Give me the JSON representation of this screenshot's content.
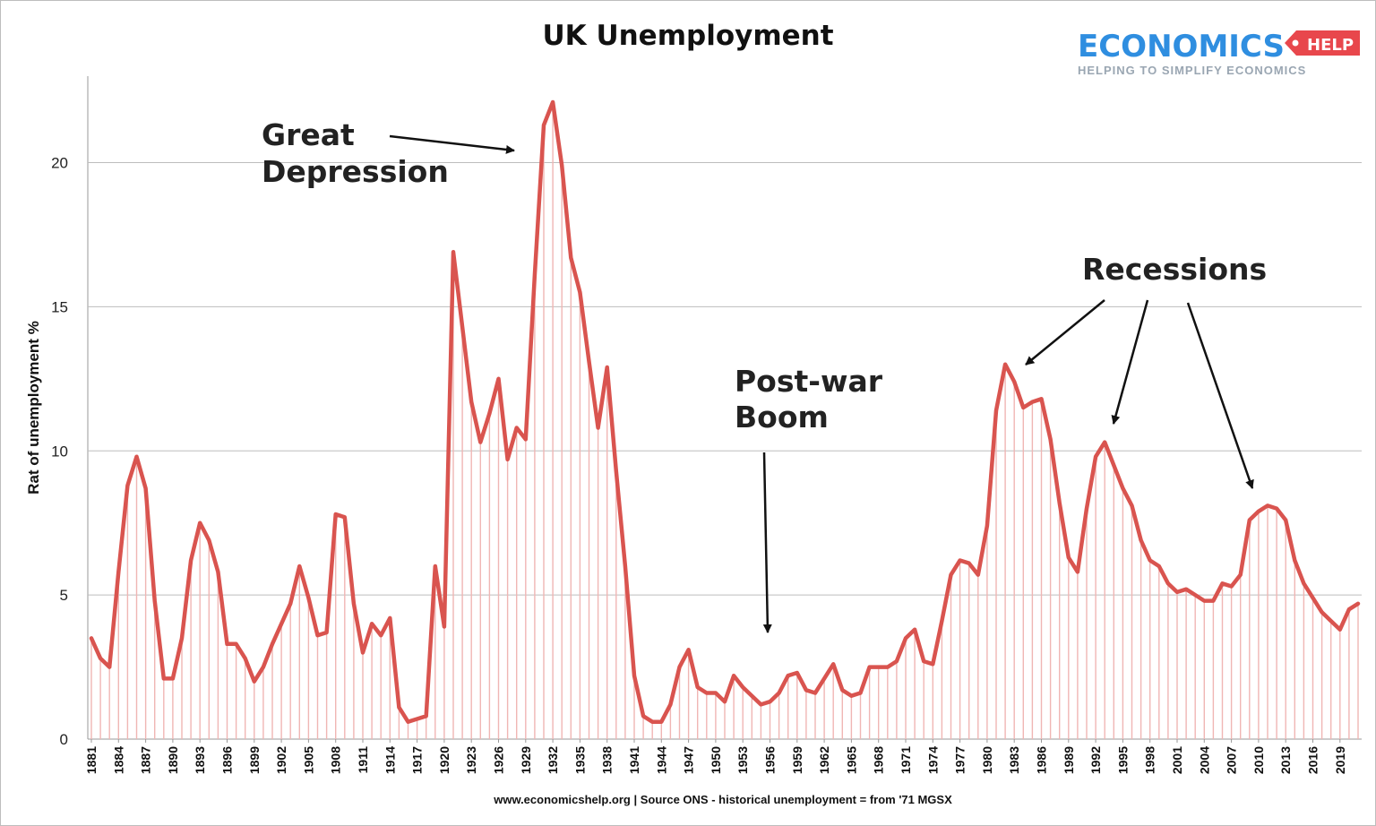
{
  "chart_data": {
    "type": "line",
    "title": "UK Unemployment",
    "ylabel": "Rat of unemployment %",
    "xlabel": "",
    "ylim": [
      0,
      23
    ],
    "yticks": [
      "0",
      "5",
      "10",
      "15",
      "20"
    ],
    "ytick_values": [
      0,
      5,
      10,
      15,
      20
    ],
    "grid": "horizontal",
    "line_color": "#d9544f",
    "drop_line_color": "#f0b6b4",
    "xtick_labels": [
      "1881",
      "1884",
      "1887",
      "1890",
      "1893",
      "1896",
      "1899",
      "1902",
      "1905",
      "1908",
      "1911",
      "1914",
      "1917",
      "1920",
      "1923",
      "1926",
      "1929",
      "1932",
      "1935",
      "1938",
      "1941",
      "1944",
      "1947",
      "1950",
      "1953",
      "1956",
      "1959",
      "1962",
      "1965",
      "1968",
      "1971",
      "1974",
      "1977",
      "1980",
      "1983",
      "1986",
      "1989",
      "1992",
      "1995",
      "1998",
      "2001",
      "2004",
      "2007",
      "2010",
      "2013",
      "2016",
      "2019"
    ],
    "x": [
      1881,
      1882,
      1883,
      1884,
      1885,
      1886,
      1887,
      1888,
      1889,
      1890,
      1891,
      1892,
      1893,
      1894,
      1895,
      1896,
      1897,
      1898,
      1899,
      1900,
      1901,
      1902,
      1903,
      1904,
      1905,
      1906,
      1907,
      1908,
      1909,
      1910,
      1911,
      1912,
      1913,
      1914,
      1915,
      1916,
      1917,
      1918,
      1919,
      1920,
      1921,
      1922,
      1923,
      1924,
      1925,
      1926,
      1927,
      1928,
      1929,
      1930,
      1931,
      1932,
      1933,
      1934,
      1935,
      1936,
      1937,
      1938,
      1939,
      1940,
      1941,
      1942,
      1943,
      1944,
      1945,
      1946,
      1947,
      1948,
      1949,
      1950,
      1951,
      1952,
      1953,
      1954,
      1955,
      1956,
      1957,
      1958,
      1959,
      1960,
      1961,
      1962,
      1963,
      1964,
      1965,
      1966,
      1967,
      1968,
      1969,
      1970,
      1971,
      1972,
      1973,
      1974,
      1975,
      1976,
      1977,
      1978,
      1979,
      1980,
      1981,
      1982,
      1983,
      1984,
      1985,
      1986,
      1987,
      1988,
      1989,
      1990,
      1991,
      1992,
      1993,
      1994,
      1995,
      1996,
      1997,
      1998,
      1999,
      2000,
      2001,
      2002,
      2003,
      2004,
      2005,
      2006,
      2007,
      2008,
      2009,
      2010,
      2011,
      2012,
      2013,
      2014,
      2015,
      2016,
      2017,
      2018,
      2019,
      2020,
      2021
    ],
    "series": [
      {
        "values": [
          3.5,
          2.8,
          2.5,
          5.8,
          8.8,
          9.8,
          8.7,
          4.8,
          2.1,
          2.1,
          3.5,
          6.2,
          7.5,
          6.9,
          5.8,
          3.3,
          3.3,
          2.8,
          2.0,
          2.5,
          3.3,
          4.0,
          4.7,
          6.0,
          4.9,
          3.6,
          3.7,
          7.8,
          7.7,
          4.7,
          3.0,
          4.0,
          3.6,
          4.2,
          1.1,
          0.6,
          0.7,
          0.8,
          6.0,
          3.9,
          16.9,
          14.3,
          11.7,
          10.3,
          11.3,
          12.5,
          9.7,
          10.8,
          10.4,
          16.1,
          21.3,
          22.1,
          19.9,
          16.7,
          15.5,
          13.1,
          10.8,
          12.9,
          9.3,
          6.0,
          2.2,
          0.8,
          0.6,
          0.6,
          1.2,
          2.5,
          3.1,
          1.8,
          1.6,
          1.6,
          1.3,
          2.2,
          1.8,
          1.5,
          1.2,
          1.3,
          1.6,
          2.2,
          2.3,
          1.7,
          1.6,
          2.1,
          2.6,
          1.7,
          1.5,
          1.6,
          2.5,
          2.5,
          2.5,
          2.7,
          3.5,
          3.8,
          2.7,
          2.6,
          4.1,
          5.7,
          6.2,
          6.1,
          5.7,
          7.4,
          11.4,
          13.0,
          12.4,
          11.5,
          11.7,
          11.8,
          10.4,
          8.2,
          6.3,
          5.8,
          8.0,
          9.8,
          10.3,
          9.5,
          8.7,
          8.1,
          6.9,
          6.2,
          6.0,
          5.4,
          5.1,
          5.2,
          5.0,
          4.8,
          4.8,
          5.4,
          5.3,
          5.7,
          7.6,
          7.9,
          8.1,
          8.0,
          7.6,
          6.2,
          5.4,
          4.9,
          4.4,
          4.1,
          3.8,
          4.5,
          4.7
        ]
      }
    ]
  },
  "annotations": {
    "great_depression_line1": "Great",
    "great_depression_line2": "Depression",
    "recessions": "Recessions",
    "post_war_line1": "Post-war",
    "post_war_line2": "Boom"
  },
  "footer": {
    "source": "www.economicshelp.org | Source ONS - historical unemployment = from '71 MGSX"
  },
  "logo": {
    "main": "ECONOMICS",
    "tag": "HELP",
    "sub": "HELPING TO SIMPLIFY ECONOMICS",
    "main_color": "#2f8ee0",
    "tag_color": "#e8474c"
  }
}
